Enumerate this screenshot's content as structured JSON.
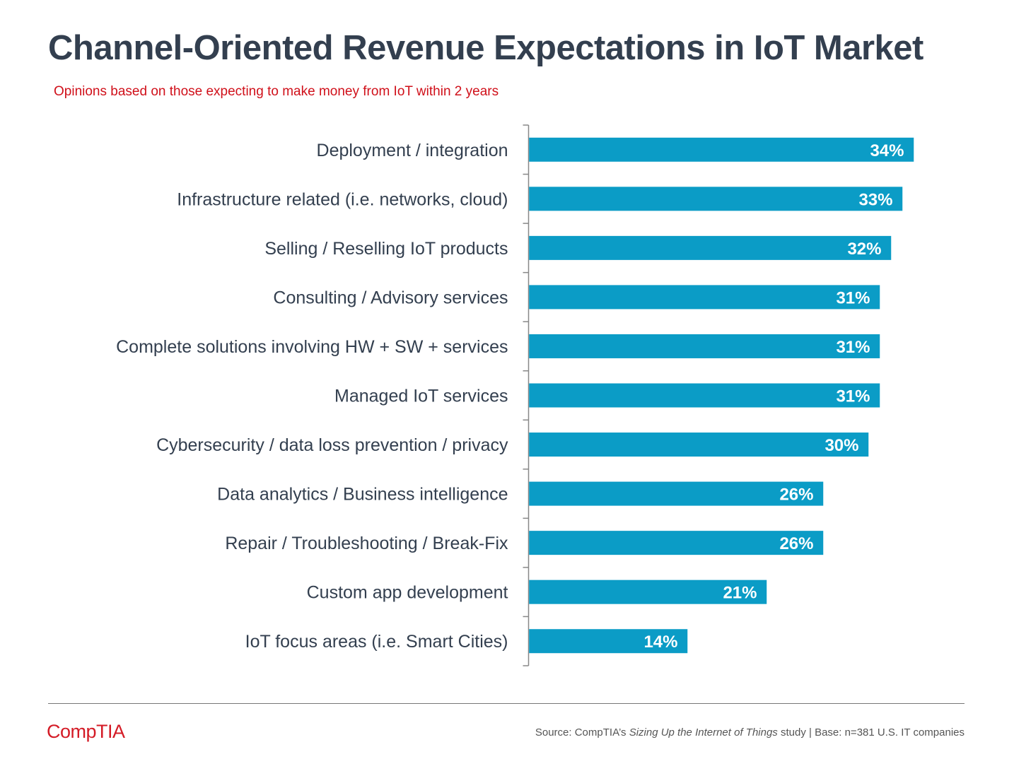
{
  "header": {
    "title": "Channel-Oriented Revenue Expectations in IoT Market",
    "subtitle": "Opinions based on those expecting to make money from IoT within 2 years"
  },
  "chart_data": {
    "type": "bar",
    "orientation": "horizontal",
    "title": "Channel-Oriented Revenue Expectations in IoT Market",
    "subtitle": "Opinions based on those expecting to make money from IoT within 2 years",
    "categories": [
      "Deployment / integration",
      "Infrastructure related (i.e. networks, cloud)",
      "Selling / Reselling IoT products",
      "Consulting / Advisory services",
      "Complete solutions involving HW + SW + services",
      "Managed IoT services",
      "Cybersecurity / data loss prevention / privacy",
      "Data analytics / Business intelligence",
      "Repair / Troubleshooting / Break-Fix",
      "Custom app development",
      "IoT focus areas (i.e. Smart Cities)"
    ],
    "values": [
      34,
      33,
      32,
      31,
      31,
      31,
      30,
      26,
      26,
      21,
      14
    ],
    "data_labels": [
      "34%",
      "33%",
      "32%",
      "31%",
      "31%",
      "31%",
      "30%",
      "26%",
      "26%",
      "21%",
      "14%"
    ],
    "xlim": [
      0,
      40
    ],
    "xlabel": "",
    "ylabel": "",
    "grid": false,
    "bar_color": "#0b9cc6",
    "label_color": "#ffffff"
  },
  "colors": {
    "title": "#333f4f",
    "subtitle": "#d0101a",
    "category_text": "#333f4f",
    "logo": "#d41b26"
  },
  "footer": {
    "logo_text": "CompTIA",
    "source_prefix": "Source: CompTIA’s ",
    "source_study": "Sizing Up the Internet of Things",
    "source_suffix": " study | Base: n=381 U.S. IT companies"
  }
}
